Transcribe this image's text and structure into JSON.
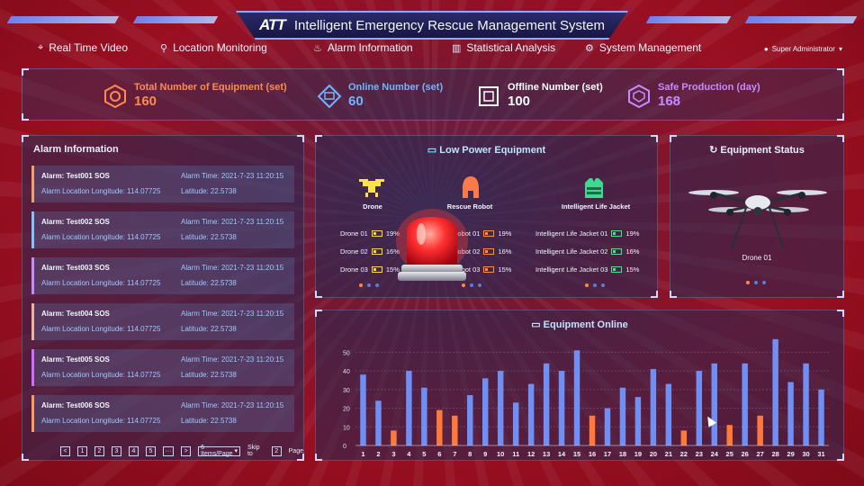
{
  "header": {
    "logo": "ATT",
    "title": "Intelligent Emergency Rescue Management System",
    "user": "Super Administrator"
  },
  "nav": [
    {
      "label": "Real Time Video",
      "icon": "location-pin-icon"
    },
    {
      "label": "Location Monitoring",
      "icon": "person-pin-icon"
    },
    {
      "label": "Alarm Information",
      "icon": "alarm-icon"
    },
    {
      "label": "Statistical Analysis",
      "icon": "bar-chart-icon"
    },
    {
      "label": "System Management",
      "icon": "gear-icon"
    }
  ],
  "stats": [
    {
      "label": "Total Number of Equipment (set)",
      "value": "160",
      "color": "#ff8a50"
    },
    {
      "label": "Online Number (set)",
      "value": "60",
      "color": "#6fb6ff"
    },
    {
      "label": "Offline Number (set)",
      "value": "100",
      "color": "#ffffff"
    },
    {
      "label": "Safe Production (day)",
      "value": "168",
      "color": "#c58cff"
    }
  ],
  "alarm": {
    "title": "Alarm Information",
    "items": [
      {
        "name": "Alarm: Test001 SOS",
        "time": "Alarm Time: 2021-7-23 11:20:15",
        "longitude": "Alarm Location Longitude: 114.07725",
        "latitude": "Latitude: 22.5738",
        "color": "#f0a16a"
      },
      {
        "name": "Alarm: Test002 SOS",
        "time": "Alarm Time: 2021-7-23 11:20:15",
        "longitude": "Alarm Location Longitude: 114.07725",
        "latitude": "Latitude: 22.5738",
        "color": "#7fc4ff"
      },
      {
        "name": "Alarm: Test003 SOS",
        "time": "Alarm Time: 2021-7-23 11:20:15",
        "longitude": "Alarm Location Longitude: 114.07725",
        "latitude": "Latitude: 22.5738",
        "color": "#c08cff"
      },
      {
        "name": "Alarm: Test004 SOS",
        "time": "Alarm Time: 2021-7-23 11:20:15",
        "longitude": "Alarm Location Longitude: 114.07725",
        "latitude": "Latitude: 22.5738",
        "color": "#f0b0a0"
      },
      {
        "name": "Alarm: Test005 SOS",
        "time": "Alarm Time: 2021-7-23 11:20:15",
        "longitude": "Alarm Location Longitude: 114.07725",
        "latitude": "Latitude: 22.5738",
        "color": "#d06cff"
      },
      {
        "name": "Alarm: Test006 SOS",
        "time": "Alarm Time: 2021-7-23 11:20:15",
        "longitude": "Alarm Location Longitude: 114.07725",
        "latitude": "Latitude: 22.5738",
        "color": "#ff9a5a"
      }
    ],
    "pager": {
      "prev": "<",
      "pages": [
        "1",
        "2",
        "3",
        "4",
        "5"
      ],
      "ellipsis": "···",
      "next": ">",
      "per_page": "6 Items/Page",
      "skip_to": "Skip to",
      "skip_value": "2",
      "page_word": "Page"
    }
  },
  "low_power": {
    "title": "Low Power Equipment",
    "columns": [
      {
        "name": "Drone",
        "icon": "drone-icon",
        "rows": [
          {
            "label": "Drone 01",
            "pct": "19%"
          },
          {
            "label": "Drone 02",
            "pct": "16%"
          },
          {
            "label": "Drone 03",
            "pct": "15%"
          }
        ]
      },
      {
        "name": "Rescue Robot",
        "icon": "robot-icon",
        "rows": [
          {
            "label": "Robot 01",
            "pct": "19%"
          },
          {
            "label": "Robot 02",
            "pct": "16%"
          },
          {
            "label": "Robot 03",
            "pct": "15%"
          }
        ]
      },
      {
        "name": "Intelligent Life Jacket",
        "icon": "life-jacket-icon",
        "rows": [
          {
            "label": "Intelligent Life Jacket 01",
            "pct": "19%"
          },
          {
            "label": "Intelligent Life Jacket 02",
            "pct": "16%"
          },
          {
            "label": "Intelligent Life Jacket 03",
            "pct": "15%"
          }
        ]
      }
    ]
  },
  "status": {
    "title": "Equipment Status",
    "device": "Drone 01"
  },
  "online": {
    "title": "Equipment Online"
  },
  "chart_data": {
    "type": "bar",
    "title": "Equipment Online",
    "categories": [
      "1",
      "2",
      "3",
      "4",
      "5",
      "6",
      "7",
      "8",
      "9",
      "10",
      "11",
      "12",
      "13",
      "14",
      "15",
      "16",
      "17",
      "18",
      "19",
      "20",
      "21",
      "22",
      "23",
      "24",
      "25",
      "26",
      "27",
      "28",
      "29",
      "30",
      "31"
    ],
    "values": [
      38,
      24,
      8,
      40,
      31,
      19,
      16,
      27,
      36,
      40,
      23,
      33,
      44,
      40,
      51,
      16,
      20,
      31,
      26,
      41,
      33,
      8,
      40,
      44,
      11,
      44,
      16,
      57,
      34,
      44,
      30
    ],
    "highlight": [
      false,
      false,
      true,
      false,
      false,
      true,
      true,
      false,
      false,
      false,
      false,
      false,
      false,
      false,
      false,
      true,
      false,
      false,
      false,
      false,
      false,
      true,
      false,
      false,
      true,
      false,
      true,
      false,
      false,
      false,
      false
    ],
    "ylim": [
      0,
      55
    ],
    "yticks": [
      0,
      10,
      20,
      30,
      40,
      50
    ],
    "colors": {
      "normal": "#6f8ff5",
      "highlight": "#ff7a3a"
    },
    "grid": true
  }
}
